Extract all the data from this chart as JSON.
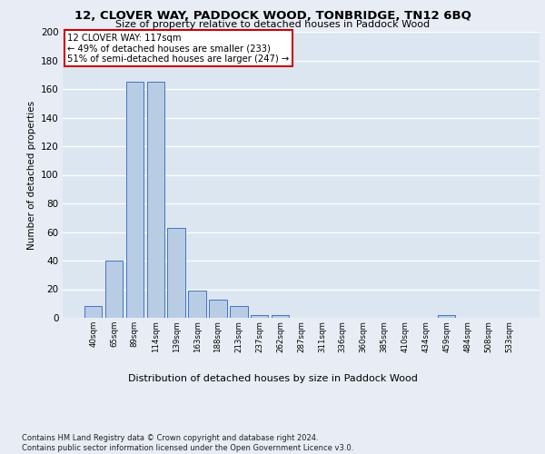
{
  "title": "12, CLOVER WAY, PADDOCK WOOD, TONBRIDGE, TN12 6BQ",
  "subtitle": "Size of property relative to detached houses in Paddock Wood",
  "xlabel": "Distribution of detached houses by size in Paddock Wood",
  "ylabel": "Number of detached properties",
  "categories": [
    "40sqm",
    "65sqm",
    "89sqm",
    "114sqm",
    "139sqm",
    "163sqm",
    "188sqm",
    "213sqm",
    "237sqm",
    "262sqm",
    "287sqm",
    "311sqm",
    "336sqm",
    "360sqm",
    "385sqm",
    "410sqm",
    "434sqm",
    "459sqm",
    "484sqm",
    "508sqm",
    "533sqm"
  ],
  "values": [
    8,
    40,
    165,
    165,
    63,
    19,
    13,
    8,
    2,
    2,
    0,
    0,
    0,
    0,
    0,
    0,
    0,
    2,
    0,
    0,
    0
  ],
  "bar_color": "#b8cce4",
  "bar_edge_color": "#4472c4",
  "background_color": "#e8edf5",
  "plot_background_color": "#dce6f1",
  "grid_color": "#ffffff",
  "annotation_text": "12 CLOVER WAY: 117sqm\n← 49% of detached houses are smaller (233)\n51% of semi-detached houses are larger (247) →",
  "annotation_box_color": "#ffffff",
  "annotation_box_edge": "#cc0000",
  "footer_line1": "Contains HM Land Registry data © Crown copyright and database right 2024.",
  "footer_line2": "Contains public sector information licensed under the Open Government Licence v3.0.",
  "ylim": [
    0,
    200
  ],
  "yticks": [
    0,
    20,
    40,
    60,
    80,
    100,
    120,
    140,
    160,
    180,
    200
  ]
}
